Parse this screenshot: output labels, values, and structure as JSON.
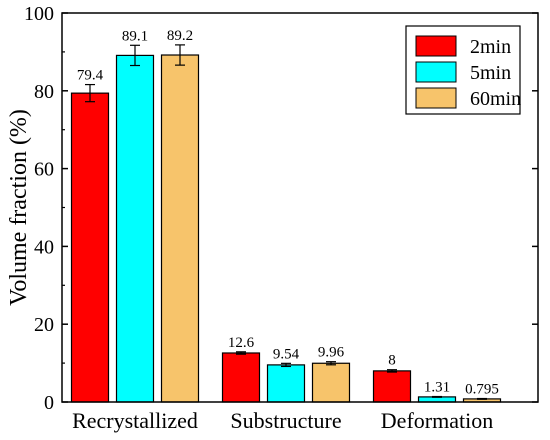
{
  "chart_data": {
    "type": "bar",
    "title": "",
    "xlabel": "",
    "ylabel": "Volume fraction (%)",
    "ylim": [
      0,
      100
    ],
    "yticks": [
      0,
      20,
      40,
      60,
      80,
      100
    ],
    "categories": [
      "Recrystallized",
      "Substructure",
      "Deformation"
    ],
    "series": [
      {
        "name": "2min",
        "color": "#ff0000",
        "values": [
          79.4,
          12.6,
          8
        ],
        "labels": [
          "79.4",
          "12.6",
          "8"
        ],
        "errors": [
          2.2,
          0.3,
          0.3
        ]
      },
      {
        "name": "5min",
        "color": "#00ffff",
        "values": [
          89.1,
          9.54,
          1.31
        ],
        "labels": [
          "89.1",
          "9.54",
          "1.31"
        ],
        "errors": [
          2.6,
          0.4,
          0.1
        ]
      },
      {
        "name": "60min",
        "color": "#f7c46b",
        "values": [
          89.2,
          9.96,
          0.795
        ],
        "labels": [
          "89.2",
          "9.96",
          "0.795"
        ],
        "errors": [
          2.6,
          0.4,
          0.1
        ]
      }
    ],
    "legend_position": "top-right",
    "grid": false
  }
}
